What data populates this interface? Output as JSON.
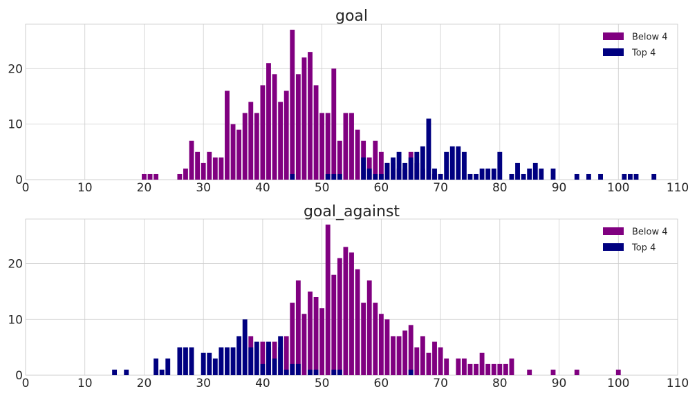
{
  "colors": {
    "below": "#800080",
    "top": "#000080"
  },
  "chart_data": [
    {
      "type": "bar",
      "title": "goal",
      "xlabel": "",
      "ylabel": "",
      "xlim": [
        0,
        110
      ],
      "ylim": [
        0,
        28
      ],
      "xticks": [
        0,
        10,
        20,
        30,
        40,
        50,
        60,
        70,
        80,
        90,
        100,
        110
      ],
      "yticks": [
        0,
        10,
        20
      ],
      "grid": true,
      "legend_position": "top-right",
      "series": [
        {
          "name": "Below 4",
          "color": "#800080",
          "points": [
            [
              20,
              1
            ],
            [
              21,
              1
            ],
            [
              22,
              1
            ],
            [
              26,
              1
            ],
            [
              27,
              2
            ],
            [
              28,
              7
            ],
            [
              29,
              5
            ],
            [
              30,
              3
            ],
            [
              31,
              5
            ],
            [
              32,
              4
            ],
            [
              33,
              4
            ],
            [
              34,
              16
            ],
            [
              35,
              10
            ],
            [
              36,
              9
            ],
            [
              37,
              12
            ],
            [
              38,
              14
            ],
            [
              39,
              12
            ],
            [
              40,
              17
            ],
            [
              41,
              21
            ],
            [
              42,
              19
            ],
            [
              43,
              14
            ],
            [
              44,
              16
            ],
            [
              45,
              27
            ],
            [
              46,
              19
            ],
            [
              47,
              22
            ],
            [
              48,
              23
            ],
            [
              49,
              17
            ],
            [
              50,
              12
            ],
            [
              51,
              12
            ],
            [
              52,
              20
            ],
            [
              53,
              7
            ],
            [
              54,
              12
            ],
            [
              55,
              12
            ],
            [
              56,
              9
            ],
            [
              57,
              7
            ],
            [
              58,
              4
            ],
            [
              59,
              7
            ],
            [
              60,
              5
            ],
            [
              61,
              3
            ],
            [
              62,
              3
            ],
            [
              63,
              2
            ],
            [
              64,
              2
            ],
            [
              65,
              5
            ],
            [
              66,
              3
            ],
            [
              67,
              2
            ],
            [
              68,
              1
            ],
            [
              69,
              1
            ],
            [
              70,
              1
            ]
          ]
        },
        {
          "name": "Top 4",
          "color": "#000080",
          "points": [
            [
              45,
              1
            ],
            [
              51,
              1
            ],
            [
              52,
              1
            ],
            [
              53,
              1
            ],
            [
              57,
              4
            ],
            [
              58,
              2
            ],
            [
              59,
              1
            ],
            [
              60,
              1
            ],
            [
              61,
              3
            ],
            [
              62,
              4
            ],
            [
              63,
              5
            ],
            [
              64,
              3
            ],
            [
              65,
              4
            ],
            [
              66,
              5
            ],
            [
              67,
              6
            ],
            [
              68,
              11
            ],
            [
              69,
              2
            ],
            [
              70,
              1
            ],
            [
              71,
              5
            ],
            [
              72,
              6
            ],
            [
              73,
              6
            ],
            [
              74,
              5
            ],
            [
              75,
              1
            ],
            [
              76,
              1
            ],
            [
              77,
              2
            ],
            [
              78,
              2
            ],
            [
              79,
              2
            ],
            [
              80,
              5
            ],
            [
              82,
              1
            ],
            [
              83,
              3
            ],
            [
              84,
              1
            ],
            [
              85,
              2
            ],
            [
              86,
              3
            ],
            [
              87,
              2
            ],
            [
              89,
              2
            ],
            [
              93,
              1
            ],
            [
              95,
              1
            ],
            [
              97,
              1
            ],
            [
              101,
              1
            ],
            [
              102,
              1
            ],
            [
              103,
              1
            ],
            [
              106,
              1
            ]
          ]
        }
      ]
    },
    {
      "type": "bar",
      "title": "goal_against",
      "xlabel": "",
      "ylabel": "",
      "xlim": [
        0,
        110
      ],
      "ylim": [
        0,
        28
      ],
      "xticks": [
        0,
        10,
        20,
        30,
        40,
        50,
        60,
        70,
        80,
        90,
        100,
        110
      ],
      "yticks": [
        0,
        10,
        20
      ],
      "grid": true,
      "legend_position": "top-right",
      "series": [
        {
          "name": "Below 4",
          "color": "#800080",
          "points": [
            [
              38,
              7
            ],
            [
              40,
              6
            ],
            [
              41,
              5
            ],
            [
              42,
              6
            ],
            [
              43,
              5
            ],
            [
              44,
              7
            ],
            [
              45,
              13
            ],
            [
              46,
              17
            ],
            [
              47,
              11
            ],
            [
              48,
              15
            ],
            [
              49,
              14
            ],
            [
              50,
              12
            ],
            [
              51,
              27
            ],
            [
              52,
              18
            ],
            [
              53,
              21
            ],
            [
              54,
              23
            ],
            [
              55,
              22
            ],
            [
              56,
              19
            ],
            [
              57,
              13
            ],
            [
              58,
              17
            ],
            [
              59,
              13
            ],
            [
              60,
              11
            ],
            [
              61,
              10
            ],
            [
              62,
              7
            ],
            [
              63,
              7
            ],
            [
              64,
              8
            ],
            [
              65,
              9
            ],
            [
              66,
              5
            ],
            [
              67,
              7
            ],
            [
              68,
              4
            ],
            [
              69,
              6
            ],
            [
              70,
              5
            ],
            [
              71,
              3
            ],
            [
              73,
              3
            ],
            [
              74,
              3
            ],
            [
              75,
              2
            ],
            [
              76,
              2
            ],
            [
              77,
              4
            ],
            [
              78,
              2
            ],
            [
              79,
              2
            ],
            [
              80,
              2
            ],
            [
              81,
              2
            ],
            [
              82,
              3
            ],
            [
              85,
              1
            ],
            [
              89,
              1
            ],
            [
              93,
              1
            ],
            [
              100,
              1
            ]
          ]
        },
        {
          "name": "Top 4",
          "color": "#000080",
          "points": [
            [
              15,
              1
            ],
            [
              17,
              1
            ],
            [
              22,
              3
            ],
            [
              23,
              1
            ],
            [
              24,
              3
            ],
            [
              26,
              5
            ],
            [
              27,
              5
            ],
            [
              28,
              5
            ],
            [
              30,
              4
            ],
            [
              31,
              4
            ],
            [
              32,
              3
            ],
            [
              33,
              5
            ],
            [
              34,
              5
            ],
            [
              35,
              5
            ],
            [
              36,
              7
            ],
            [
              37,
              10
            ],
            [
              38,
              5
            ],
            [
              39,
              6
            ],
            [
              40,
              2
            ],
            [
              41,
              6
            ],
            [
              42,
              3
            ],
            [
              43,
              7
            ],
            [
              44,
              1
            ],
            [
              45,
              2
            ],
            [
              46,
              2
            ],
            [
              48,
              1
            ],
            [
              49,
              1
            ],
            [
              52,
              1
            ],
            [
              53,
              1
            ],
            [
              65,
              1
            ]
          ]
        }
      ]
    }
  ]
}
